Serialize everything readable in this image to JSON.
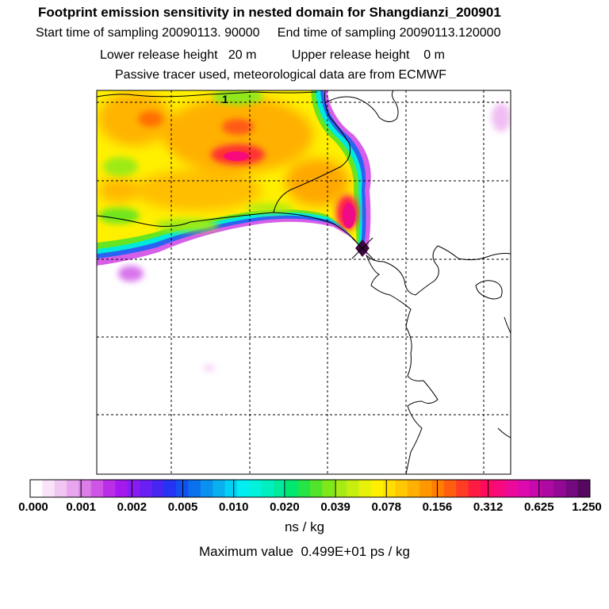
{
  "header": {
    "title": "Footprint emission sensitivity in nested domain for Shangdianzi_200901",
    "sampling": "Start time of sampling 20090113. 90000     End time of sampling 20090113.120000",
    "release": "Lower release height   20 m          Upper release height    0 m",
    "tracer": "Passive tracer used, meteorological data are from ECMWF"
  },
  "map": {
    "station_marker_label": "1",
    "receptor": "Shangdianzi"
  },
  "colorbar": {
    "unit": "ns / kg",
    "ticks": [
      "0.000",
      "0.001",
      "0.002",
      "0.005",
      "0.010",
      "0.020",
      "0.039",
      "0.078",
      "0.156",
      "0.312",
      "0.625",
      "1.250"
    ],
    "colors": [
      "#ffffff",
      "#f9e3f9",
      "#f1c6f2",
      "#e8a6ee",
      "#dc7ee8",
      "#cf55e6",
      "#bb2ee8",
      "#a41aee",
      "#8a1cf2",
      "#6a20f4",
      "#4726f2",
      "#2434f2",
      "#1250f0",
      "#0a70ee",
      "#0a90ef",
      "#08b0f0",
      "#04d0f4",
      "#00eef2",
      "#00f2dc",
      "#00efbe",
      "#00ec9c",
      "#00e870",
      "#24e448",
      "#52e42a",
      "#7ee81a",
      "#a4ec14",
      "#c6ee0e",
      "#e6f00a",
      "#fff000",
      "#ffde00",
      "#ffc800",
      "#ffb000",
      "#ff9800",
      "#ff7e00",
      "#ff5e10",
      "#ff3c24",
      "#ff1c40",
      "#ff0a5e",
      "#f80a7c",
      "#ec0a98",
      "#de0aae",
      "#c80aac",
      "#ae0aa2",
      "#920a94",
      "#740a80",
      "#56085e"
    ]
  },
  "max_value": "Maximum value  0.499E+01 ps / kg"
}
